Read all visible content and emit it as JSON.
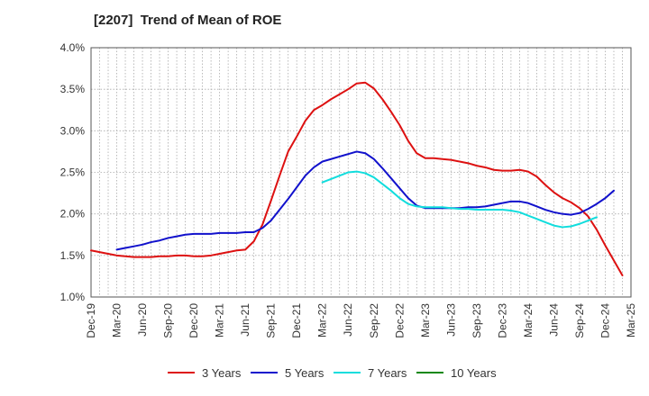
{
  "chart_data": {
    "type": "line",
    "title": "[2207]  Trend of Mean of ROE",
    "xlabel": "",
    "ylabel": "",
    "ylim": [
      1.0,
      4.0
    ],
    "y_ticks": [
      "1.0%",
      "1.5%",
      "2.0%",
      "2.5%",
      "3.0%",
      "3.5%",
      "4.0%"
    ],
    "y_tick_values": [
      1.0,
      1.5,
      2.0,
      2.5,
      3.0,
      3.5,
      4.0
    ],
    "x_ticks": [
      "Dec-19",
      "Mar-20",
      "Jun-20",
      "Sep-20",
      "Dec-20",
      "Mar-21",
      "Jun-21",
      "Sep-21",
      "Dec-21",
      "Mar-22",
      "Jun-22",
      "Sep-22",
      "Dec-22",
      "Mar-23",
      "Jun-23",
      "Sep-23",
      "Dec-23",
      "Mar-24",
      "Jun-24",
      "Sep-24",
      "Dec-24",
      "Mar-25"
    ],
    "grid": true,
    "legend_position": "bottom",
    "series": [
      {
        "name": "3 Years",
        "color": "#dd1111",
        "start_month": 0,
        "values": [
          1.56,
          1.54,
          1.52,
          1.5,
          1.49,
          1.48,
          1.48,
          1.48,
          1.49,
          1.49,
          1.5,
          1.5,
          1.49,
          1.49,
          1.5,
          1.52,
          1.54,
          1.56,
          1.57,
          1.67,
          1.87,
          2.16,
          2.46,
          2.75,
          2.93,
          3.12,
          3.25,
          3.31,
          3.38,
          3.44,
          3.5,
          3.57,
          3.58,
          3.51,
          3.38,
          3.23,
          3.07,
          2.88,
          2.73,
          2.67,
          2.67,
          2.66,
          2.65,
          2.63,
          2.61,
          2.58,
          2.56,
          2.53,
          2.52,
          2.52,
          2.53,
          2.51,
          2.45,
          2.35,
          2.26,
          2.19,
          2.14,
          2.07,
          1.97,
          1.81,
          1.62,
          1.44,
          1.26
        ]
      },
      {
        "name": "5 Years",
        "color": "#1111cc",
        "start_month": 3,
        "values": [
          1.57,
          1.59,
          1.61,
          1.63,
          1.66,
          1.68,
          1.71,
          1.73,
          1.75,
          1.76,
          1.76,
          1.76,
          1.77,
          1.77,
          1.77,
          1.78,
          1.78,
          1.83,
          1.92,
          2.05,
          2.18,
          2.32,
          2.46,
          2.56,
          2.63,
          2.66,
          2.69,
          2.72,
          2.75,
          2.73,
          2.66,
          2.55,
          2.43,
          2.31,
          2.19,
          2.1,
          2.07,
          2.07,
          2.07,
          2.07,
          2.07,
          2.08,
          2.08,
          2.09,
          2.11,
          2.13,
          2.15,
          2.15,
          2.13,
          2.09,
          2.05,
          2.02,
          2.0,
          1.99,
          2.01,
          2.06,
          2.12,
          2.19,
          2.28
        ]
      },
      {
        "name": "7 Years",
        "color": "#11dddd",
        "start_month": 27,
        "values": [
          2.38,
          2.42,
          2.46,
          2.5,
          2.51,
          2.49,
          2.44,
          2.36,
          2.28,
          2.19,
          2.12,
          2.09,
          2.08,
          2.08,
          2.08,
          2.07,
          2.06,
          2.06,
          2.05,
          2.05,
          2.05,
          2.05,
          2.04,
          2.02,
          1.98,
          1.94,
          1.9,
          1.86,
          1.84,
          1.85,
          1.88,
          1.92,
          1.96
        ]
      },
      {
        "name": "10 Years",
        "color": "#118811",
        "start_month": 0,
        "values": []
      }
    ]
  }
}
